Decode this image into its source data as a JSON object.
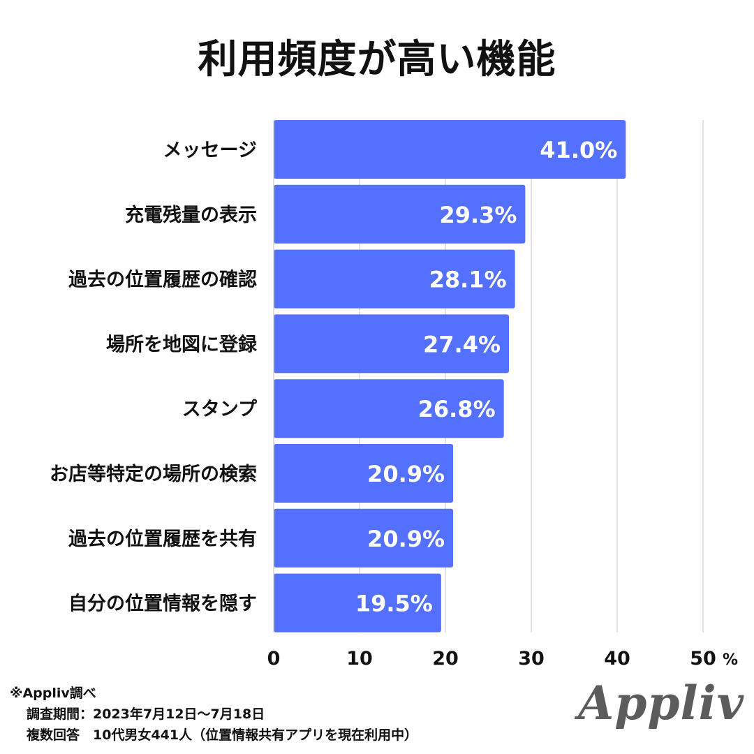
{
  "chart_data": {
    "type": "bar",
    "orientation": "horizontal",
    "title": "利用頻度が高い機能",
    "categories": [
      "メッセージ",
      "充電残量の表示",
      "過去の位置履歴の確認",
      "場所を地図に登録",
      "スタンプ",
      "お店等特定の場所の検索",
      "過去の位置履歴を共有",
      "自分の位置情報を隠す"
    ],
    "values": [
      41.0,
      29.3,
      28.1,
      27.4,
      26.8,
      20.9,
      20.9,
      19.5
    ],
    "data_labels": [
      "41.0%",
      "29.3%",
      "28.1%",
      "27.4%",
      "26.8%",
      "20.9%",
      "20.9%",
      "19.5%"
    ],
    "xlim": [
      0,
      50
    ],
    "x_ticks": [
      0,
      10,
      20,
      30,
      40,
      50
    ],
    "x_tick_labels": [
      "0",
      "10",
      "20",
      "30",
      "40",
      "50"
    ],
    "x_unit": "%",
    "grid": true,
    "bar_color": "#5470FE",
    "grid_color": "#d9d9d9"
  },
  "notes": {
    "source": "※Appliv調べ",
    "period": "調査期間：2023年7月12日〜7月18日",
    "respondents": "複数回答　10代男女441人（位置情報共有アプリを現在利用中）"
  },
  "logo": "Appliv"
}
